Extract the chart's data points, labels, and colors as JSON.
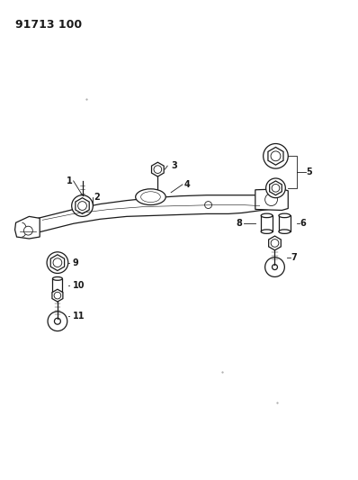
{
  "title": "91713 100",
  "bg_color": "#ffffff",
  "line_color": "#1a1a1a",
  "title_fontsize": 9,
  "label_fontsize": 7,
  "fig_width": 3.98,
  "fig_height": 5.33,
  "dpi": 100
}
